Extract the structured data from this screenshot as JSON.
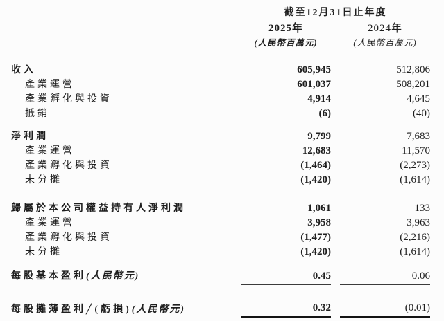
{
  "page": {
    "background_color": "#fcfcfc",
    "text_color": "#1e1e1e"
  },
  "header": {
    "period_title": "截至12月31日止年度",
    "col_2025": {
      "year": "2025年",
      "unit": "(人民幣百萬元)"
    },
    "col_2024": {
      "year": "2024年",
      "unit": "(人民幣百萬元)"
    }
  },
  "sections": [
    {
      "name": "revenue",
      "rows": [
        {
          "label": "收入",
          "bold": true,
          "indent": false,
          "v2025": "605,945",
          "v2024": "512,806"
        },
        {
          "label": "產業運營",
          "bold": false,
          "indent": true,
          "v2025": "601,037",
          "v2024": "508,201"
        },
        {
          "label": "產業孵化與投資",
          "bold": false,
          "indent": true,
          "v2025": "4,914",
          "v2024": "4,645"
        },
        {
          "label": "抵銷",
          "bold": false,
          "indent": true,
          "v2025": "(6)",
          "v2024": "(40)"
        }
      ]
    },
    {
      "name": "net-profit",
      "rows": [
        {
          "label": "淨利潤",
          "bold": true,
          "indent": false,
          "v2025": "9,799",
          "v2024": "7,683"
        },
        {
          "label": "產業運營",
          "bold": false,
          "indent": true,
          "v2025": "12,683",
          "v2024": "11,570"
        },
        {
          "label": "產業孵化與投資",
          "bold": false,
          "indent": true,
          "v2025": "(1,464)",
          "v2024": "(2,273)"
        },
        {
          "label": "未分攤",
          "bold": false,
          "indent": true,
          "v2025": "(1,420)",
          "v2024": "(1,614)"
        }
      ]
    },
    {
      "name": "net-profit-attributable-to-equity-holders",
      "rows": [
        {
          "label": "歸屬於本公司權益持有人淨利潤",
          "bold": true,
          "indent": false,
          "v2025": "1,061",
          "v2024": "133"
        },
        {
          "label": "產業運營",
          "bold": false,
          "indent": true,
          "v2025": "3,958",
          "v2024": "3,963"
        },
        {
          "label": "產業孵化與投資",
          "bold": false,
          "indent": true,
          "v2025": "(1,477)",
          "v2024": "(2,216)"
        },
        {
          "label": "未分攤",
          "bold": false,
          "indent": true,
          "v2025": "(1,420)",
          "v2024": "(1,614)"
        }
      ]
    },
    {
      "name": "basic-eps",
      "rows": [
        {
          "label": "每股基本盈利",
          "note": "(人民幣元)",
          "bold": true,
          "indent": false,
          "v2025": "0.45",
          "v2024": "0.06",
          "rule": "thin"
        }
      ]
    },
    {
      "name": "diluted-eps",
      "rows": [
        {
          "label": "每股攤薄盈利╱(虧損)",
          "note": "(人民幣元)",
          "bold": true,
          "indent": false,
          "v2025": "0.32",
          "v2024": "(0.01)",
          "rule": "thick"
        }
      ]
    }
  ]
}
